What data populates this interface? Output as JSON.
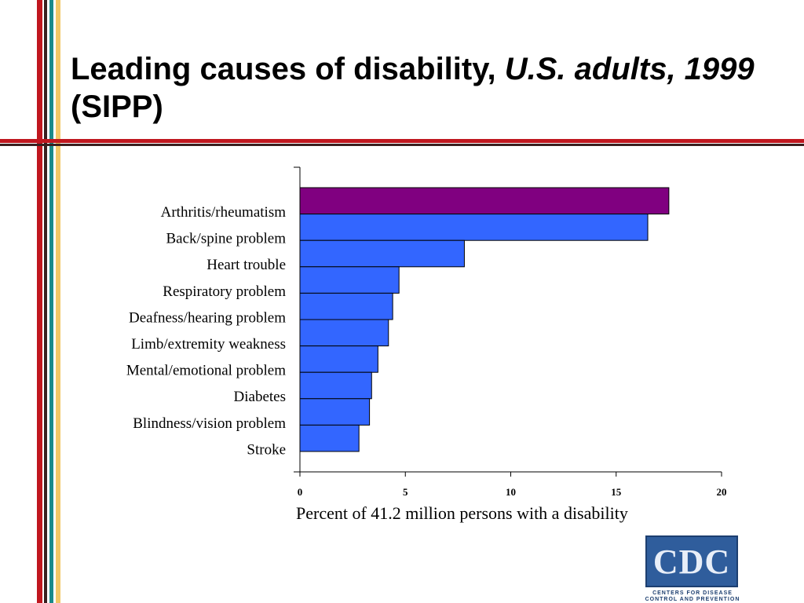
{
  "page": {
    "title_main": "Leading causes of disability,",
    "title_italic": "U.S. adults, 1999",
    "title_end": "(SIPP)",
    "stripe_colors": [
      "#c0171f",
      "#1a8a8a",
      "#f2c766",
      "#3a1f1f"
    ]
  },
  "chart_data": {
    "type": "bar",
    "orientation": "horizontal",
    "categories": [
      "Arthritis/rheumatism",
      "Back/spine problem",
      "Heart trouble",
      "Respiratory problem",
      "Deafness/hearing problem",
      "Limb/extremity weakness",
      "Mental/emotional problem",
      "Diabetes",
      "Blindness/vision problem",
      "Stroke"
    ],
    "values": [
      17.5,
      16.5,
      7.8,
      4.7,
      4.4,
      4.2,
      3.7,
      3.4,
      3.3,
      2.8
    ],
    "bar_colors": [
      "#800080",
      "#3366ff",
      "#3366ff",
      "#3366ff",
      "#3366ff",
      "#3366ff",
      "#3366ff",
      "#3366ff",
      "#3366ff",
      "#3366ff"
    ],
    "xlim": [
      0,
      20
    ],
    "xticks": [
      "0",
      "5",
      "10",
      "15",
      "20"
    ],
    "xlabel": "Percent of 41.2 million persons with a disability",
    "ylabel": "",
    "grid": false
  },
  "logo": {
    "text": "CDC",
    "subtitle_line1": "CENTERS FOR DISEASE",
    "subtitle_line2": "CONTROL AND PREVENTION"
  }
}
